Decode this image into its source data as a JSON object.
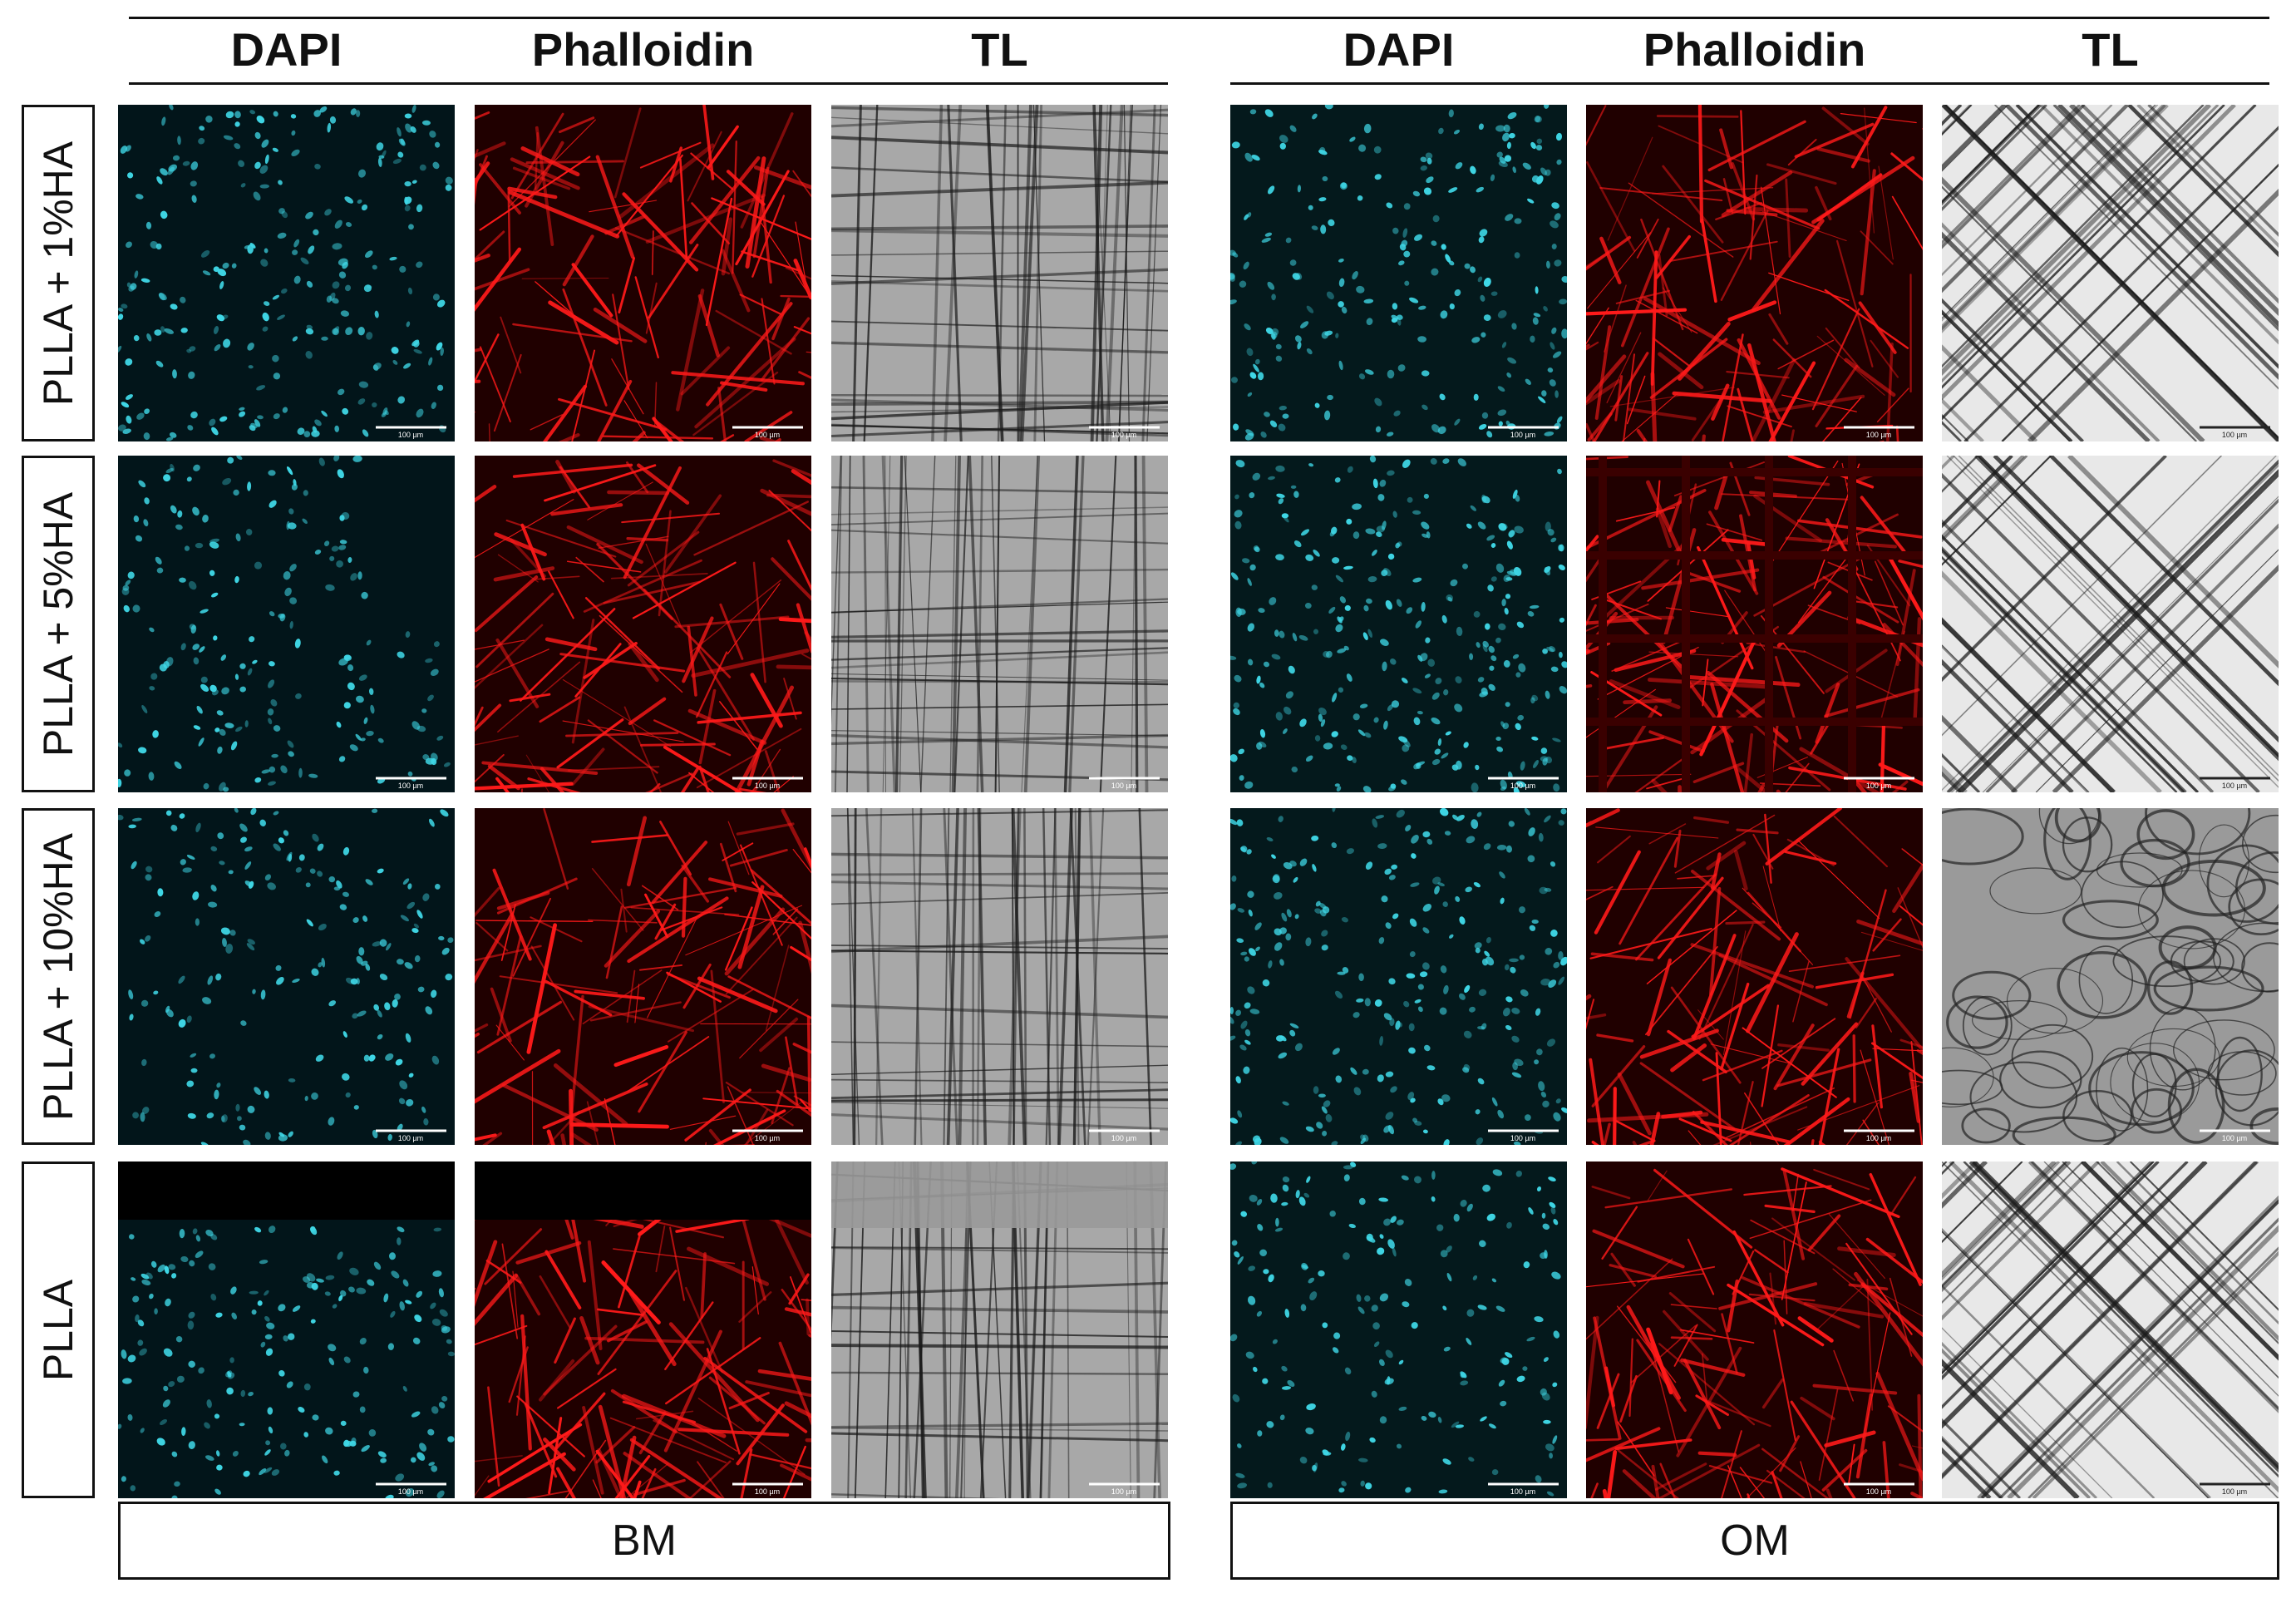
{
  "groups": [
    {
      "label": "BM",
      "columns": [
        "DAPI",
        "Phalloidin",
        "TL"
      ]
    },
    {
      "label": "OM",
      "columns": [
        "DAPI",
        "Phalloidin",
        "TL"
      ]
    }
  ],
  "rows": [
    "PLLA + 1%HA",
    "PLLA + 5%HA",
    "PLLA + 10%HA",
    "PLLA"
  ],
  "scale_bar_label": "100 µm",
  "stain_colors": {
    "DAPI": "#3fd7e6",
    "Phalloidin": "#ff1a1a",
    "TL": "#9a9a9a"
  },
  "icons": {
    "dapi-panel": "fluorescence-nuclei-image",
    "phalloidin-panel": "fluorescence-actin-image",
    "tl-panel": "transmitted-light-fiber-image"
  }
}
